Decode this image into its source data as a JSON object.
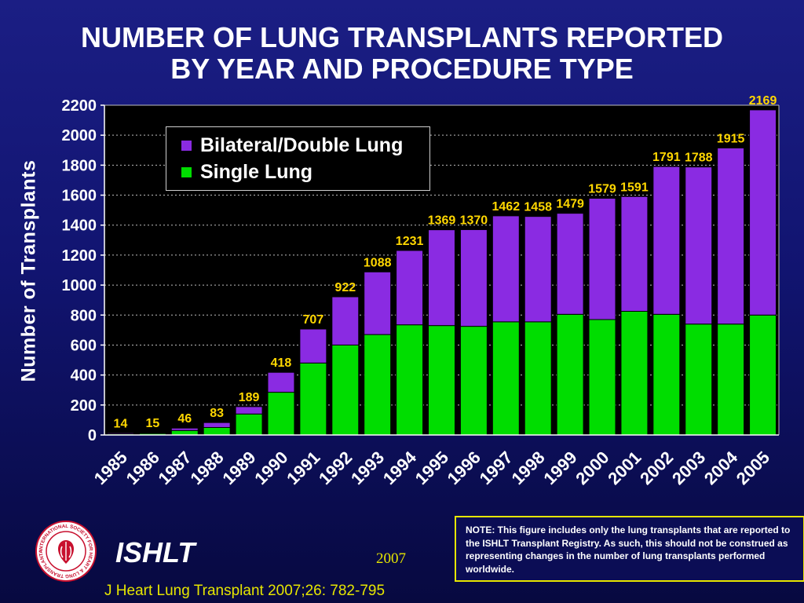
{
  "slide": {
    "title_line1": "NUMBER OF LUNG TRANSPLANTS REPORTED",
    "title_line2": "BY YEAR AND PROCEDURE TYPE",
    "organization": "ISHLT",
    "year": "2007",
    "citation": "J Heart Lung Transplant 2007;26: 782-795",
    "note": "NOTE: This figure includes only the lung transplants that are reported to the ISHLT Transplant Registry.  As such, this should not be construed as representing changes in the number of lung transplants performed worldwide.",
    "seal_text": "INTERNATIONAL SOCIETY FOR HEART & LUNG TRANSPLANTATION"
  },
  "colors": {
    "single_lung": "#00dd00",
    "bilateral": "#8a2be2",
    "data_label": "#ffd700",
    "text": "#ffffff",
    "accent_yellow": "#e6e600"
  },
  "chart_data": {
    "type": "bar",
    "stacked": true,
    "title": "NUMBER OF LUNG TRANSPLANTS REPORTED BY YEAR AND PROCEDURE TYPE",
    "xlabel": "",
    "ylabel": "Number of Transplants",
    "ylim": [
      0,
      2200
    ],
    "yticks": [
      0,
      200,
      400,
      600,
      800,
      1000,
      1200,
      1400,
      1600,
      1800,
      2000,
      2200
    ],
    "grid": "horizontal dotted",
    "legend_position": "top-left",
    "categories": [
      "1985",
      "1986",
      "1987",
      "1988",
      "1989",
      "1990",
      "1991",
      "1992",
      "1993",
      "1994",
      "1995",
      "1996",
      "1997",
      "1998",
      "1999",
      "2000",
      "2001",
      "2002",
      "2003",
      "2004",
      "2005"
    ],
    "series": [
      {
        "name": "Single Lung",
        "color": "#00dd00",
        "values": [
          7,
          10,
          30,
          50,
          140,
          285,
          480,
          600,
          670,
          735,
          730,
          725,
          755,
          755,
          805,
          770,
          825,
          805,
          740,
          740,
          800
        ]
      },
      {
        "name": "Bilateral/Double Lung",
        "color": "#8a2be2",
        "values": [
          7,
          5,
          16,
          33,
          49,
          133,
          227,
          322,
          418,
          496,
          639,
          645,
          707,
          703,
          674,
          809,
          766,
          986,
          1048,
          1175,
          1369
        ]
      }
    ],
    "totals": [
      14,
      15,
      46,
      83,
      189,
      418,
      707,
      922,
      1088,
      1231,
      1369,
      1370,
      1462,
      1458,
      1479,
      1579,
      1591,
      1791,
      1788,
      1915,
      2169
    ],
    "legend": [
      "Bilateral/Double Lung",
      "Single Lung"
    ]
  }
}
